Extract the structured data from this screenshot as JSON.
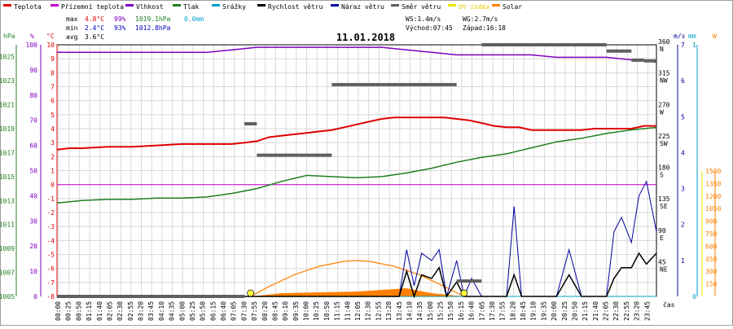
{
  "legend": [
    {
      "label": "Teplota",
      "color": "#e00000"
    },
    {
      "label": "Přízemní teplota",
      "color": "#cc00cc"
    },
    {
      "label": "Vlhkost",
      "color": "#8000c0"
    },
    {
      "label": "Tlak",
      "color": "#208020"
    },
    {
      "label": "Srážky",
      "color": "#00a0c8"
    },
    {
      "label": "Rychlost větru",
      "color": "#000000"
    },
    {
      "label": "Náraz větru",
      "color": "#0000a0"
    },
    {
      "label": "Směr větru",
      "color": "#606060"
    },
    {
      "label": "UV index",
      "color": "#e8e800"
    },
    {
      "label": "Solar",
      "color": "#ff8000"
    }
  ],
  "stats": {
    "max_label": "max",
    "max_temp": "4.8°C",
    "max_hum": "99%",
    "max_press": "1019.1hPa",
    "rain": "0.0mm",
    "min_label": "min",
    "min_temp": "2.4°C",
    "min_hum": "93%",
    "min_press": "1012.8hPa",
    "avg_label": "avg",
    "avg_temp": "3.6°C"
  },
  "info": {
    "ws": "WS:1.4m/s",
    "wg": "WG:2.7m/s",
    "sunrise": "Východ:07:45",
    "sunset": "Západ:16:18"
  },
  "date": "11.01.2018",
  "axis_units": {
    "hpa": "hPa",
    "pct": "%",
    "c": "°C",
    "ms": "m/s",
    "mm": "mm",
    "w": "W",
    "time": "čas"
  },
  "colors": {
    "temp": "#e00000",
    "dew": "#cc00cc",
    "hum": "#8000c0",
    "press": "#208020",
    "rain": "#00a0c8",
    "wind": "#000000",
    "gust": "#0000a0",
    "dir": "#606060",
    "uv": "#e8e800",
    "solar": "#ff8000",
    "grid": "#d8d8d8"
  },
  "chart_data": {
    "type": "line",
    "title": "11.01.2018",
    "x_ticks": [
      "00:00",
      "00:25",
      "00:50",
      "01:15",
      "01:40",
      "02:05",
      "02:30",
      "02:55",
      "03:20",
      "03:45",
      "04:10",
      "04:35",
      "05:00",
      "05:25",
      "05:50",
      "06:15",
      "06:40",
      "07:05",
      "07:30",
      "07:55",
      "08:20",
      "08:45",
      "09:10",
      "09:35",
      "10:00",
      "10:25",
      "10:50",
      "11:15",
      "11:40",
      "12:05",
      "12:30",
      "12:55",
      "13:20",
      "13:45",
      "14:10",
      "14:35",
      "15:00",
      "15:25",
      "15:50",
      "16:15",
      "16:40",
      "17:05",
      "17:30",
      "17:55",
      "18:20",
      "18:45",
      "19:10",
      "19:35",
      "20:00",
      "20:25",
      "20:50",
      "21:15",
      "21:40",
      "22:05",
      "22:30",
      "22:55",
      "23:20",
      "23:45"
    ],
    "axes": {
      "hpa": {
        "ticks": [
          "1005",
          "1007",
          "1009",
          "1011",
          "1013",
          "1015",
          "1017",
          "1019",
          "1021",
          "1023",
          "1025"
        ],
        "range": [
          1005,
          1026
        ]
      },
      "pct": {
        "ticks": [
          "0",
          "10",
          "20",
          "30",
          "40",
          "50",
          "60",
          "70",
          "80",
          "90",
          "100"
        ],
        "range": [
          0,
          100
        ]
      },
      "temp_c": {
        "ticks": [
          "-8",
          "-7",
          "-6",
          "-5",
          "-4",
          "-3",
          "-2",
          "-1",
          "0",
          "1",
          "2",
          "3",
          "4",
          "5",
          "6",
          "7",
          "8",
          "9",
          "10"
        ],
        "range": [
          -8,
          10
        ]
      },
      "dir": {
        "ticks": [
          "0",
          "45",
          "90",
          "135",
          "180",
          "225",
          "270",
          "315",
          "360"
        ],
        "labels": [
          "",
          "NE",
          "E",
          "SE",
          "S",
          "SW",
          "W",
          "NW",
          "N"
        ]
      },
      "ms": {
        "ticks": [
          "0",
          "1",
          "2",
          "3",
          "4",
          "5",
          "6",
          "7"
        ],
        "range": [
          0,
          7
        ]
      },
      "mm": {
        "ticks": [
          "0",
          "1"
        ],
        "range": [
          0,
          1
        ]
      },
      "w": {
        "ticks": [
          "0",
          "150",
          "300",
          "450",
          "600",
          "750",
          "900",
          "1050",
          "1200",
          "1350",
          "1500"
        ],
        "range": [
          0,
          1500
        ]
      }
    },
    "series": [
      {
        "name": "Teplota",
        "unit": "°C",
        "x": [
          0,
          0.5,
          1,
          2,
          3,
          4,
          5,
          6,
          7,
          7.5,
          8,
          8.5,
          9,
          9.5,
          10,
          10.5,
          11,
          11.5,
          12,
          12.5,
          13,
          13.5,
          14,
          14.5,
          15,
          15.5,
          16,
          16.5,
          17,
          17.5,
          18,
          18.5,
          19,
          19.5,
          20,
          20.5,
          21,
          21.5,
          22,
          22.5,
          23,
          23.5,
          24
        ],
        "values": [
          2.5,
          2.6,
          2.6,
          2.7,
          2.7,
          2.8,
          2.9,
          2.9,
          2.9,
          3.0,
          3.1,
          3.4,
          3.5,
          3.6,
          3.7,
          3.8,
          3.9,
          4.1,
          4.3,
          4.5,
          4.7,
          4.8,
          4.8,
          4.8,
          4.8,
          4.8,
          4.7,
          4.6,
          4.4,
          4.2,
          4.1,
          4.1,
          3.9,
          3.9,
          3.9,
          3.9,
          3.9,
          4.0,
          4.0,
          4.0,
          4.0,
          4.2,
          4.2
        ]
      },
      {
        "name": "Vlhkost",
        "unit": "%",
        "x": [
          0,
          1,
          2,
          3,
          4,
          5,
          6,
          7,
          8,
          9,
          10,
          11,
          12,
          13,
          14,
          15,
          16,
          17,
          18,
          19,
          20,
          21,
          22,
          23,
          23.5,
          24
        ],
        "values": [
          97,
          97,
          97,
          97,
          97,
          97,
          97,
          98,
          99,
          99,
          99,
          99,
          99,
          99,
          98,
          97,
          96,
          96,
          96,
          96,
          95,
          95,
          95,
          94,
          94,
          93
        ]
      },
      {
        "name": "Přízemní teplota",
        "unit": "°C",
        "x": [
          0,
          24
        ],
        "values": [
          0,
          0
        ]
      },
      {
        "name": "Tlak",
        "unit": "hPa",
        "x": [
          0,
          1,
          2,
          3,
          4,
          5,
          6,
          7,
          8,
          9,
          10,
          11,
          12,
          13,
          14,
          15,
          16,
          17,
          18,
          19,
          20,
          21,
          22,
          23,
          24
        ],
        "values": [
          1012.8,
          1013.0,
          1013.1,
          1013.1,
          1013.2,
          1013.2,
          1013.3,
          1013.6,
          1014.0,
          1014.6,
          1015.1,
          1015.0,
          1014.9,
          1015.0,
          1015.3,
          1015.7,
          1016.2,
          1016.6,
          1016.9,
          1017.4,
          1017.9,
          1018.2,
          1018.6,
          1018.9,
          1019.1
        ]
      },
      {
        "name": "Srážky",
        "unit": "mm",
        "x": [
          0,
          24
        ],
        "values": [
          0,
          0
        ]
      },
      {
        "name": "Rychlost větru",
        "unit": "m/s",
        "x": [
          0,
          13.7,
          14.0,
          14.3,
          14.6,
          15.0,
          15.3,
          15.6,
          16.0,
          16.3,
          16.6,
          17.0,
          18.0,
          18.3,
          18.6,
          19.0,
          20.0,
          20.5,
          21.0,
          22.0,
          22.3,
          22.6,
          23.0,
          23.3,
          23.6,
          24
        ],
        "values": [
          0,
          0,
          0.7,
          0,
          0.6,
          0.5,
          0.8,
          0,
          0.4,
          0,
          0,
          0,
          0,
          0.6,
          0,
          0,
          0,
          0.6,
          0,
          0,
          0.5,
          0.8,
          0.8,
          1.2,
          0.9,
          1.2
        ]
      },
      {
        "name": "Náraz větru",
        "unit": "m/s",
        "x": [
          0,
          13.7,
          14.0,
          14.3,
          14.6,
          15.0,
          15.3,
          15.6,
          16.0,
          16.3,
          16.6,
          17.0,
          18.0,
          18.3,
          18.6,
          19.0,
          20.0,
          20.5,
          21.0,
          22.0,
          22.3,
          22.6,
          23.0,
          23.3,
          23.6,
          24
        ],
        "values": [
          0,
          0,
          1.3,
          0.3,
          1.2,
          1.0,
          1.3,
          0,
          1.0,
          0,
          0.5,
          0,
          0,
          2.5,
          0,
          0,
          0,
          1.3,
          0,
          0,
          1.8,
          2.2,
          1.5,
          2.8,
          3.2,
          1.8
        ]
      },
      {
        "name": "Směr větru",
        "unit": "°",
        "x": [
          0,
          1,
          2,
          3,
          4,
          5,
          6,
          7,
          7.3,
          7.5,
          8,
          9,
          10,
          10.5,
          11,
          12,
          13,
          14,
          15,
          16,
          17,
          18,
          19,
          20,
          21,
          22,
          23,
          23.5,
          24
        ],
        "values": [
          0,
          0,
          0,
          0,
          0,
          0,
          0,
          0,
          0,
          247,
          202,
          202,
          202,
          202,
          303,
          303,
          303,
          303,
          303,
          22,
          360,
          360,
          360,
          360,
          360,
          351,
          338,
          337,
          333
        ]
      },
      {
        "name": "Solar",
        "unit": "W",
        "x": [
          7.75,
          8.5,
          9.5,
          10.5,
          11.5,
          12.0,
          12.5,
          13.5,
          14.5,
          15.5,
          16.3
        ],
        "values": [
          0,
          120,
          260,
          360,
          420,
          430,
          420,
          360,
          260,
          120,
          0
        ]
      },
      {
        "name": "UV index",
        "unit": "",
        "x": [
          0,
          24
        ],
        "values": [
          0,
          0
        ]
      }
    ]
  }
}
